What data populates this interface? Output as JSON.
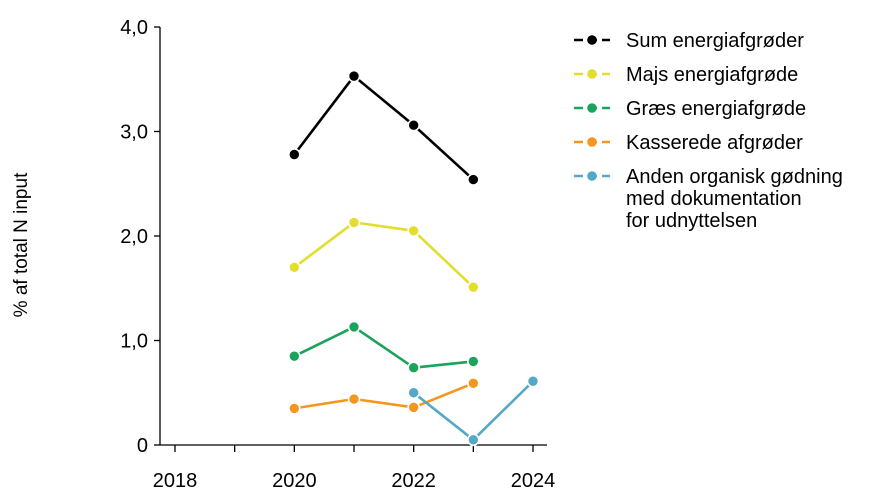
{
  "chart_data": {
    "type": "line",
    "ylabel": "% af total N input",
    "xlabel": "",
    "xlim": [
      2018,
      2024
    ],
    "ylim": [
      0,
      4.0
    ],
    "x_ticks": [
      "2018",
      "2020",
      "2022",
      "2024"
    ],
    "y_ticks": [
      "0",
      "1,0",
      "2,0",
      "3,0",
      "4,0"
    ],
    "legend_position": "right",
    "grid": false,
    "series": [
      {
        "name": "Sum energiafgrøder",
        "color": "#000000",
        "x": [
          2020,
          2021,
          2022,
          2023
        ],
        "y": [
          2.78,
          3.53,
          3.06,
          2.54
        ]
      },
      {
        "name": "Majs energiafgrøde",
        "color": "#e3de2c",
        "x": [
          2020,
          2021,
          2022,
          2023
        ],
        "y": [
          1.7,
          2.13,
          2.05,
          1.51
        ]
      },
      {
        "name": "Græs energiafgrøde",
        "color": "#1aa35a",
        "x": [
          2020,
          2021,
          2022,
          2023
        ],
        "y": [
          0.85,
          1.13,
          0.74,
          0.8
        ]
      },
      {
        "name": "Kasserede afgrøder",
        "color": "#f5961e",
        "x": [
          2020,
          2021,
          2022,
          2023
        ],
        "y": [
          0.35,
          0.44,
          0.36,
          0.59
        ]
      },
      {
        "name": [
          "Anden organisk gødning",
          "med dokumentation",
          "for udnyttelsen"
        ],
        "color": "#55a8c6",
        "x": [
          2022,
          2023,
          2024
        ],
        "y": [
          0.5,
          0.05,
          0.61
        ]
      }
    ]
  }
}
